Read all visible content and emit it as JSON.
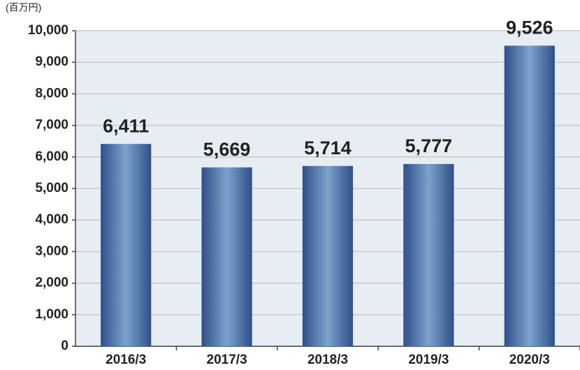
{
  "chart_data": {
    "type": "bar",
    "y_axis_label": "(百万円)",
    "categories": [
      "2016/3",
      "2017/3",
      "2018/3",
      "2019/3",
      "2020/3"
    ],
    "values": [
      6411,
      5669,
      5714,
      5777,
      9526
    ],
    "value_labels": [
      "6,411",
      "5,669",
      "5,714",
      "5,777",
      "9,526"
    ],
    "color": "#3b5f9a",
    "ylim": [
      0,
      10000
    ],
    "yticks": [
      0,
      {
        "value": 1000,
        "label": "1,000"
      },
      {
        "value": 2000,
        "label": "2,000"
      },
      {
        "value": 3000,
        "label": "3,000"
      },
      {
        "value": 4000,
        "label": "4,000"
      },
      {
        "value": 5000,
        "label": "5,000"
      },
      {
        "value": 6000,
        "label": "6,000"
      },
      {
        "value": 7000,
        "label": "7,000"
      },
      {
        "value": 8000,
        "label": "8,000"
      },
      {
        "value": 9000,
        "label": "9,000"
      },
      {
        "value": 10000,
        "label": "10,000"
      }
    ],
    "grid": true
  }
}
